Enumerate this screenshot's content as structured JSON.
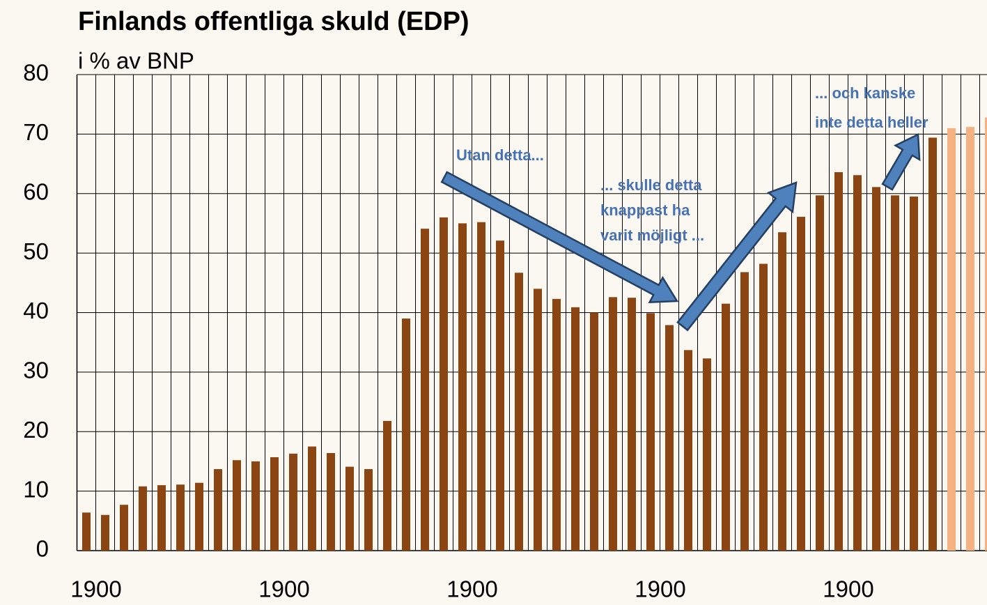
{
  "chart_data": {
    "type": "bar",
    "title": "Finlands offentliga skuld (EDP)",
    "subtitle": "i % av BNP",
    "categories": [
      "1900",
      null,
      null,
      null,
      null,
      null,
      null,
      null,
      null,
      null,
      "1900",
      null,
      null,
      null,
      null,
      null,
      null,
      null,
      null,
      null,
      "1900",
      null,
      null,
      null,
      null,
      null,
      null,
      null,
      null,
      null,
      "1900",
      null,
      null,
      null,
      null,
      null,
      null,
      null,
      null,
      null,
      "1900",
      null,
      null,
      null,
      null,
      null,
      null,
      null,
      null
    ],
    "series": [
      {
        "color": "#8b4513",
        "values": [
          6.4,
          6.0,
          7.7,
          10.8,
          11.0,
          11.1,
          11.4,
          13.7,
          15.2,
          15.0,
          15.7,
          16.3,
          17.5,
          16.4,
          14.1,
          13.7,
          21.8,
          39.0,
          54.1,
          56.0,
          55.0,
          55.2,
          52.1,
          46.7,
          44.0,
          42.3,
          40.9,
          40.0,
          42.6,
          42.5,
          39.9,
          37.9,
          33.7,
          32.3,
          41.5,
          46.8,
          48.2,
          53.5,
          56.1,
          59.7,
          63.6,
          63.1,
          61.1,
          59.7,
          59.5,
          69.4,
          null,
          null,
          null
        ]
      },
      {
        "color": "#f6b183",
        "values": [
          null,
          null,
          null,
          null,
          null,
          null,
          null,
          null,
          null,
          null,
          null,
          null,
          null,
          null,
          null,
          null,
          null,
          null,
          null,
          null,
          null,
          null,
          null,
          null,
          null,
          null,
          null,
          null,
          null,
          null,
          null,
          null,
          null,
          null,
          null,
          null,
          null,
          null,
          null,
          null,
          null,
          null,
          null,
          null,
          null,
          null,
          71.0,
          71.2,
          72.8
        ]
      }
    ],
    "ylim": [
      0,
      80
    ],
    "yticks": [
      0,
      10,
      20,
      30,
      40,
      50,
      60,
      70,
      80
    ],
    "grid": true,
    "annotations": [
      {
        "lines": [
          "Utan detta..."
        ]
      },
      {
        "lines": [
          "... skulle detta",
          "knappast ha",
          "varit möjligt ..."
        ]
      },
      {
        "lines": [
          "... och kanske",
          "inte detta heller"
        ]
      }
    ]
  }
}
